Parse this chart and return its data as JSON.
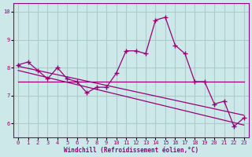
{
  "xlabel": "Windchill (Refroidissement éolien,°C)",
  "background_color": "#cce8e8",
  "grid_color": "#aacccc",
  "line_color": "#990077",
  "ylim": [
    5.5,
    10.3
  ],
  "xlim": [
    -0.5,
    23.5
  ],
  "yticks": [
    6,
    7,
    8,
    9,
    10
  ],
  "xticks": [
    0,
    1,
    2,
    3,
    4,
    5,
    6,
    7,
    8,
    9,
    10,
    11,
    12,
    13,
    14,
    15,
    16,
    17,
    18,
    19,
    20,
    21,
    22,
    23
  ],
  "hours": [
    0,
    1,
    2,
    3,
    4,
    5,
    6,
    7,
    8,
    9,
    10,
    11,
    12,
    13,
    14,
    15,
    16,
    17,
    18,
    19,
    20,
    21,
    22,
    23
  ],
  "main_values": [
    8.1,
    8.2,
    7.9,
    7.6,
    8.0,
    7.6,
    7.5,
    7.1,
    7.3,
    7.3,
    7.8,
    8.6,
    8.6,
    8.5,
    9.7,
    9.8,
    8.8,
    8.5,
    7.5,
    7.5,
    6.7,
    6.8,
    5.9,
    6.2
  ],
  "trend_horizontal": [
    7.5,
    7.5
  ],
  "trend_diag1": [
    8.05,
    6.3
  ],
  "trend_diag2": [
    7.9,
    5.95
  ]
}
